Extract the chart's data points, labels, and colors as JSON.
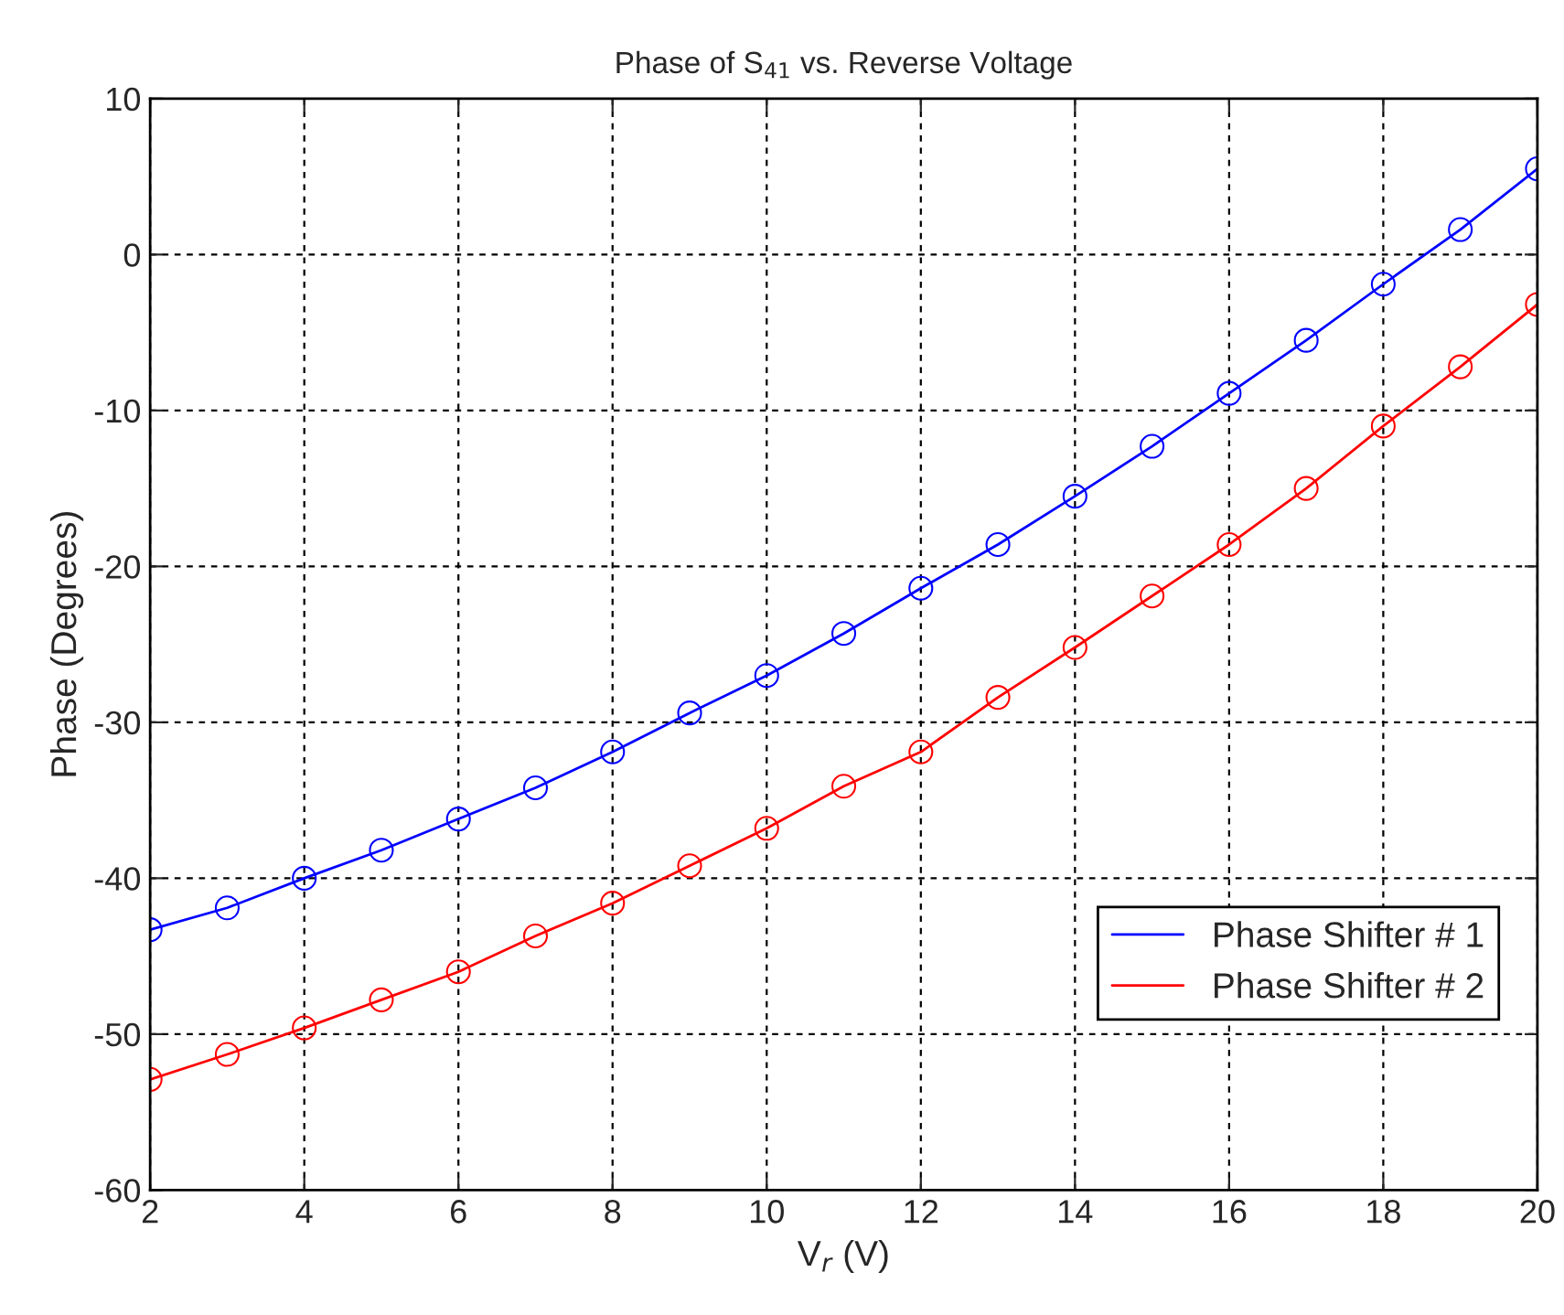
{
  "chart_data": {
    "type": "line",
    "title": "Phase of S$_{41}$ vs. Reverse Voltage",
    "xlabel": "V$_{r}$ (V)",
    "ylabel": "Phase (Degrees)",
    "x": [
      2,
      3,
      4,
      5,
      6,
      7,
      8,
      9,
      10,
      11,
      12,
      13,
      14,
      15,
      16,
      17,
      18,
      19,
      20
    ],
    "series": [
      {
        "name": "Phase Shifter # 1",
        "color": "#0000ff",
        "values": [
          -43.3,
          -41.9,
          -40.0,
          -38.2,
          -36.2,
          -34.2,
          -31.9,
          -29.4,
          -27.0,
          -24.3,
          -21.4,
          -18.6,
          -15.5,
          -12.3,
          -8.9,
          -5.5,
          -1.9,
          1.6,
          5.5
        ]
      },
      {
        "name": "Phase Shifter # 2",
        "color": "#ff0000",
        "values": [
          -52.9,
          -51.3,
          -49.6,
          -47.8,
          -46.0,
          -43.7,
          -41.6,
          -39.2,
          -36.8,
          -34.1,
          -31.9,
          -28.4,
          -25.2,
          -21.9,
          -18.6,
          -15.0,
          -11.0,
          -7.2,
          -3.2
        ]
      }
    ],
    "xlim": [
      2,
      20
    ],
    "xticks": [
      2,
      4,
      6,
      8,
      10,
      12,
      14,
      16,
      18,
      20
    ],
    "ylim": [
      -60,
      10
    ],
    "yticks": [
      -60,
      -50,
      -40,
      -30,
      -20,
      -10,
      0,
      10
    ],
    "grid": true,
    "legend": "lower right",
    "marker": "circle",
    "line_style": "solid"
  }
}
